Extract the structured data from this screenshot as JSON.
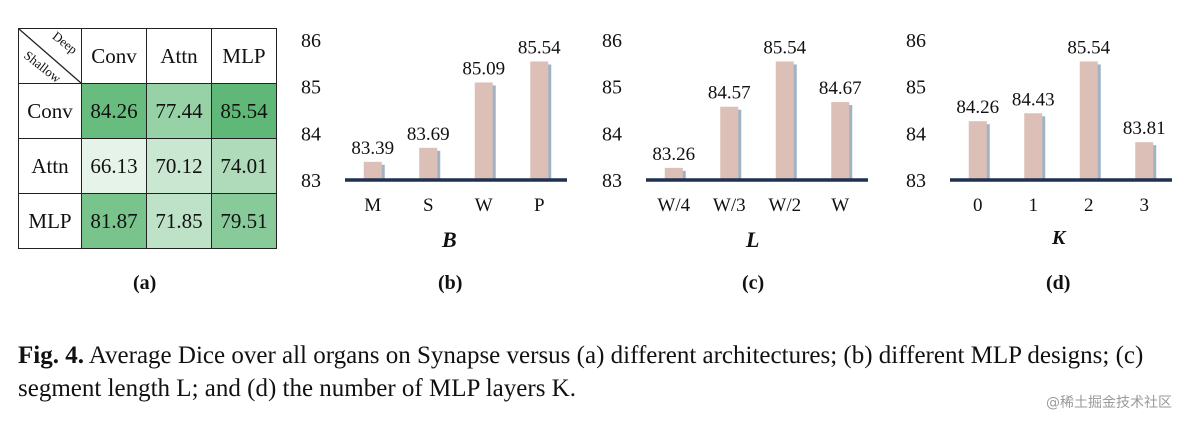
{
  "chart_data": [
    {
      "type": "heatmap",
      "panel_label": "(a)",
      "corner_top": "Deep",
      "corner_bottom": "Shallow",
      "columns": [
        "Conv",
        "Attn",
        "MLP"
      ],
      "rows": [
        "Conv",
        "Attn",
        "MLP"
      ],
      "values": [
        [
          "84.26",
          "77.44",
          "85.54"
        ],
        [
          "66.13",
          "70.12",
          "74.01"
        ],
        [
          "81.87",
          "71.85",
          "79.51"
        ]
      ]
    },
    {
      "type": "bar",
      "panel_label": "(b)",
      "xlabel": "B",
      "categories": [
        "M",
        "S",
        "W",
        "P"
      ],
      "values": [
        83.39,
        83.69,
        85.09,
        85.54
      ],
      "value_labels": [
        "83.39",
        "83.69",
        "85.09",
        "85.54"
      ],
      "yticks": [
        "83",
        "84",
        "85",
        "86"
      ],
      "ylim": [
        83,
        86
      ]
    },
    {
      "type": "bar",
      "panel_label": "(c)",
      "xlabel": "L",
      "categories": [
        "W/4",
        "W/3",
        "W/2",
        "W"
      ],
      "values": [
        83.26,
        84.57,
        85.54,
        84.67
      ],
      "value_labels": [
        "83.26",
        "84.57",
        "85.54",
        "84.67"
      ],
      "yticks": [
        "83",
        "84",
        "85",
        "86"
      ],
      "ylim": [
        83,
        86
      ]
    },
    {
      "type": "bar",
      "panel_label": "(d)",
      "xlabel": "K",
      "categories": [
        "0",
        "1",
        "2",
        "3"
      ],
      "values": [
        84.26,
        84.43,
        85.54,
        83.81
      ],
      "value_labels": [
        "84.26",
        "84.43",
        "85.54",
        "83.81"
      ],
      "yticks": [
        "83",
        "84",
        "85",
        "86"
      ],
      "ylim": [
        83,
        86
      ]
    }
  ],
  "colors": {
    "bar_fill": "#dcbfb6",
    "bar_shadow": "#9fb3c4",
    "axis_line": "#1f3050",
    "heat_low": "#e6f3e8",
    "heat_high": "#5fb877"
  },
  "caption": {
    "fig_label": "Fig. 4.",
    "text": "Average Dice over all organs on Synapse versus (a) different architectures; (b) different MLP designs; (c) segment length L; and (d) the number of MLP layers K."
  },
  "watermark": "@稀土掘金技术社区"
}
